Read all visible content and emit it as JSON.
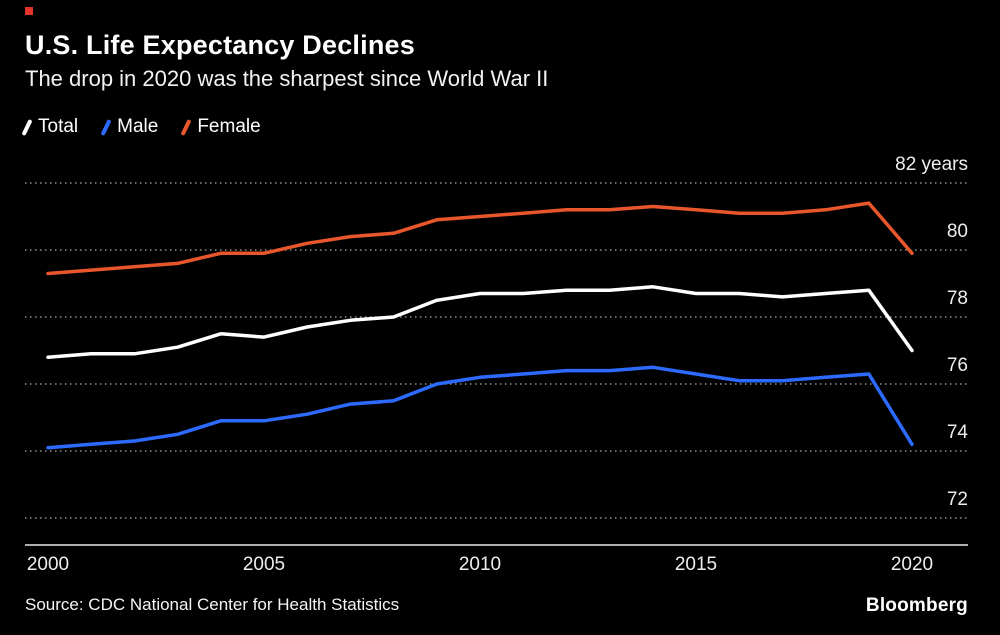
{
  "header": {
    "title": "U.S. Life Expectancy Declines",
    "subtitle": "The drop in 2020 was the sharpest since World War II"
  },
  "chart_data": {
    "type": "line",
    "x": [
      2000,
      2001,
      2002,
      2003,
      2004,
      2005,
      2006,
      2007,
      2008,
      2009,
      2010,
      2011,
      2012,
      2013,
      2014,
      2015,
      2016,
      2017,
      2018,
      2019,
      2020
    ],
    "series": [
      {
        "name": "Total",
        "color": "#ffffff",
        "values": [
          76.8,
          76.9,
          76.9,
          77.1,
          77.5,
          77.4,
          77.7,
          77.9,
          78.0,
          78.5,
          78.7,
          78.7,
          78.8,
          78.8,
          78.9,
          78.7,
          78.7,
          78.6,
          78.7,
          78.8,
          77.0
        ]
      },
      {
        "name": "Male",
        "color": "#2d6aff",
        "values": [
          74.1,
          74.2,
          74.3,
          74.5,
          74.9,
          74.9,
          75.1,
          75.4,
          75.5,
          76.0,
          76.2,
          76.3,
          76.4,
          76.4,
          76.5,
          76.3,
          76.1,
          76.1,
          76.2,
          76.3,
          74.2
        ]
      },
      {
        "name": "Female",
        "color": "#e8572b",
        "values": [
          79.3,
          79.4,
          79.5,
          79.6,
          79.9,
          79.9,
          80.2,
          80.4,
          80.5,
          80.9,
          81.0,
          81.1,
          81.2,
          81.2,
          81.3,
          81.2,
          81.1,
          81.1,
          81.2,
          81.4,
          79.9
        ]
      }
    ],
    "ylim": [
      72,
      82
    ],
    "yticks": [
      82,
      80,
      78,
      76,
      74,
      72
    ],
    "ytick_label_top": "82 years",
    "xticks": [
      2000,
      2005,
      2010,
      2015,
      2020
    ],
    "grid": "dotted horizontal",
    "legend_position": "top-left",
    "xlabel": "",
    "ylabel": "years"
  },
  "footer": {
    "source": "Source: CDC National Center for Health Statistics",
    "brand": "Bloomberg"
  }
}
